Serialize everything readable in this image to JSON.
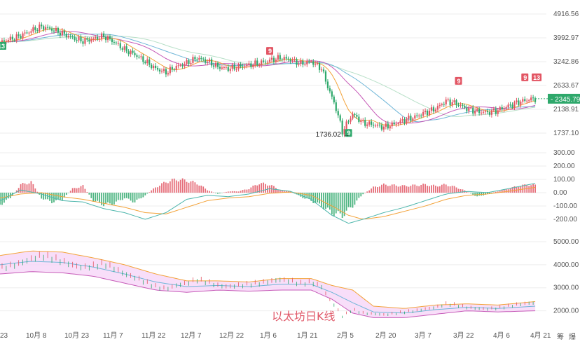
{
  "chart_data": {
    "type": "candlestick",
    "title": "",
    "watermark": "以太坊日K线",
    "x_axis": {
      "tick_labels": [
        "23",
        "10月 8",
        "10月 23",
        "11月 7",
        "11月 22",
        "12月 7",
        "12月 22",
        "1月 6",
        "1月 21",
        "2月 5",
        "2月 20",
        "3月 7",
        "3月 22",
        "4月 6",
        "4月 21"
      ]
    },
    "price_panel": {
      "y_tick_labels": [
        "4916.56",
        "3992.97",
        "3242.86",
        "2633.67",
        "2138.91",
        "1737.10"
      ],
      "y_tick_values": [
        4916.56,
        3992.97,
        3242.86,
        2633.67,
        2138.91,
        1737.1
      ],
      "log_scale": true,
      "current_price": "2345.79",
      "low_annotation": "1736.02",
      "low_value": 1736.02,
      "close_series": [
        {
          "x": 0,
          "y": 3850
        },
        {
          "x": 8,
          "y": 4010
        },
        {
          "x": 15,
          "y": 4250
        },
        {
          "x": 20,
          "y": 4400
        },
        {
          "x": 25,
          "y": 4300
        },
        {
          "x": 30,
          "y": 4150
        },
        {
          "x": 35,
          "y": 3990
        },
        {
          "x": 40,
          "y": 3880
        },
        {
          "x": 45,
          "y": 3950
        },
        {
          "x": 50,
          "y": 4050
        },
        {
          "x": 55,
          "y": 3850
        },
        {
          "x": 60,
          "y": 3600
        },
        {
          "x": 65,
          "y": 3450
        },
        {
          "x": 70,
          "y": 3250
        },
        {
          "x": 75,
          "y": 3050
        },
        {
          "x": 80,
          "y": 2950
        },
        {
          "x": 85,
          "y": 3100
        },
        {
          "x": 90,
          "y": 3200
        },
        {
          "x": 95,
          "y": 3350
        },
        {
          "x": 100,
          "y": 3250
        },
        {
          "x": 105,
          "y": 3100
        },
        {
          "x": 110,
          "y": 3050
        },
        {
          "x": 115,
          "y": 3100
        },
        {
          "x": 120,
          "y": 3150
        },
        {
          "x": 125,
          "y": 3200
        },
        {
          "x": 130,
          "y": 3280
        },
        {
          "x": 135,
          "y": 3350
        },
        {
          "x": 140,
          "y": 3300
        },
        {
          "x": 145,
          "y": 3180
        },
        {
          "x": 150,
          "y": 3250
        },
        {
          "x": 155,
          "y": 3050
        },
        {
          "x": 158,
          "y": 2600
        },
        {
          "x": 162,
          "y": 2150
        },
        {
          "x": 165,
          "y": 1760
        },
        {
          "x": 170,
          "y": 2050
        },
        {
          "x": 175,
          "y": 1900
        },
        {
          "x": 180,
          "y": 1870
        },
        {
          "x": 185,
          "y": 1830
        },
        {
          "x": 190,
          "y": 1880
        },
        {
          "x": 195,
          "y": 1950
        },
        {
          "x": 200,
          "y": 2000
        },
        {
          "x": 205,
          "y": 2080
        },
        {
          "x": 210,
          "y": 2150
        },
        {
          "x": 215,
          "y": 2300
        },
        {
          "x": 220,
          "y": 2250
        },
        {
          "x": 225,
          "y": 2150
        },
        {
          "x": 230,
          "y": 2100
        },
        {
          "x": 235,
          "y": 2080
        },
        {
          "x": 240,
          "y": 2120
        },
        {
          "x": 245,
          "y": 2200
        },
        {
          "x": 250,
          "y": 2280
        },
        {
          "x": 255,
          "y": 2330
        },
        {
          "x": 258,
          "y": 2346
        }
      ],
      "badges": [
        {
          "text": "13",
          "type": "green",
          "x": 0,
          "y": 3850
        },
        {
          "text": "9",
          "type": "red",
          "x": 130,
          "y": 3300
        },
        {
          "text": "9",
          "type": "green",
          "x": 168,
          "y": 1800
        },
        {
          "text": "9",
          "type": "red",
          "x": 221,
          "y": 2540
        },
        {
          "text": "9",
          "type": "red",
          "x": 253,
          "y": 2620
        },
        {
          "text": "13",
          "type": "red",
          "x": 258,
          "y": 2620
        }
      ]
    },
    "macd_panel": {
      "y_tick_labels": [
        "300.00",
        "200.00",
        "100.00",
        "0.00",
        "-100.00",
        "-200.00"
      ],
      "y_tick_values": [
        300,
        200,
        100,
        0,
        -100,
        -200
      ],
      "histogram": [
        {
          "x": 0,
          "v": -90
        },
        {
          "x": 5,
          "v": -40
        },
        {
          "x": 10,
          "v": 60
        },
        {
          "x": 15,
          "v": 80
        },
        {
          "x": 20,
          "v": -40
        },
        {
          "x": 25,
          "v": -70
        },
        {
          "x": 30,
          "v": -50
        },
        {
          "x": 35,
          "v": 30
        },
        {
          "x": 40,
          "v": 50
        },
        {
          "x": 45,
          "v": -60
        },
        {
          "x": 50,
          "v": -90
        },
        {
          "x": 55,
          "v": -80
        },
        {
          "x": 60,
          "v": -40
        },
        {
          "x": 65,
          "v": -70
        },
        {
          "x": 70,
          "v": -20
        },
        {
          "x": 75,
          "v": 40
        },
        {
          "x": 80,
          "v": 80
        },
        {
          "x": 85,
          "v": 100
        },
        {
          "x": 90,
          "v": 90
        },
        {
          "x": 95,
          "v": 70
        },
        {
          "x": 100,
          "v": 20
        },
        {
          "x": 105,
          "v": -10
        },
        {
          "x": 110,
          "v": 10
        },
        {
          "x": 115,
          "v": 10
        },
        {
          "x": 120,
          "v": 30
        },
        {
          "x": 125,
          "v": 70
        },
        {
          "x": 130,
          "v": 60
        },
        {
          "x": 135,
          "v": 20
        },
        {
          "x": 140,
          "v": 10
        },
        {
          "x": 145,
          "v": -30
        },
        {
          "x": 150,
          "v": -60
        },
        {
          "x": 155,
          "v": -100
        },
        {
          "x": 160,
          "v": -150
        },
        {
          "x": 165,
          "v": -170
        },
        {
          "x": 170,
          "v": -100
        },
        {
          "x": 175,
          "v": -10
        },
        {
          "x": 180,
          "v": 40
        },
        {
          "x": 185,
          "v": 60
        },
        {
          "x": 190,
          "v": 55
        },
        {
          "x": 195,
          "v": 50
        },
        {
          "x": 200,
          "v": 55
        },
        {
          "x": 205,
          "v": 60
        },
        {
          "x": 210,
          "v": 50
        },
        {
          "x": 215,
          "v": 60
        },
        {
          "x": 220,
          "v": 40
        },
        {
          "x": 225,
          "v": 10
        },
        {
          "x": 230,
          "v": -30
        },
        {
          "x": 235,
          "v": -10
        },
        {
          "x": 240,
          "v": 10
        },
        {
          "x": 245,
          "v": 30
        },
        {
          "x": 250,
          "v": 50
        },
        {
          "x": 255,
          "v": 60
        },
        {
          "x": 258,
          "v": 55
        }
      ],
      "dif": [
        {
          "x": 0,
          "v": -60
        },
        {
          "x": 10,
          "v": 20
        },
        {
          "x": 20,
          "v": -10
        },
        {
          "x": 30,
          "v": -60
        },
        {
          "x": 40,
          "v": -70
        },
        {
          "x": 50,
          "v": -120
        },
        {
          "x": 60,
          "v": -150
        },
        {
          "x": 70,
          "v": -200
        },
        {
          "x": 80,
          "v": -150
        },
        {
          "x": 90,
          "v": -50
        },
        {
          "x": 100,
          "v": -20
        },
        {
          "x": 110,
          "v": -30
        },
        {
          "x": 120,
          "v": -10
        },
        {
          "x": 130,
          "v": 30
        },
        {
          "x": 140,
          "v": 10
        },
        {
          "x": 150,
          "v": -50
        },
        {
          "x": 160,
          "v": -170
        },
        {
          "x": 168,
          "v": -230
        },
        {
          "x": 175,
          "v": -200
        },
        {
          "x": 185,
          "v": -150
        },
        {
          "x": 195,
          "v": -110
        },
        {
          "x": 205,
          "v": -60
        },
        {
          "x": 215,
          "v": -10
        },
        {
          "x": 225,
          "v": 10
        },
        {
          "x": 235,
          "v": 0
        },
        {
          "x": 245,
          "v": 30
        },
        {
          "x": 258,
          "v": 70
        }
      ],
      "dea": [
        {
          "x": 0,
          "v": -40
        },
        {
          "x": 10,
          "v": -10
        },
        {
          "x": 20,
          "v": 0
        },
        {
          "x": 30,
          "v": -30
        },
        {
          "x": 40,
          "v": -50
        },
        {
          "x": 50,
          "v": -80
        },
        {
          "x": 60,
          "v": -110
        },
        {
          "x": 70,
          "v": -150
        },
        {
          "x": 80,
          "v": -160
        },
        {
          "x": 90,
          "v": -110
        },
        {
          "x": 100,
          "v": -60
        },
        {
          "x": 110,
          "v": -40
        },
        {
          "x": 120,
          "v": -30
        },
        {
          "x": 130,
          "v": -5
        },
        {
          "x": 140,
          "v": 5
        },
        {
          "x": 150,
          "v": -20
        },
        {
          "x": 160,
          "v": -100
        },
        {
          "x": 168,
          "v": -170
        },
        {
          "x": 175,
          "v": -200
        },
        {
          "x": 185,
          "v": -180
        },
        {
          "x": 195,
          "v": -140
        },
        {
          "x": 205,
          "v": -100
        },
        {
          "x": 215,
          "v": -50
        },
        {
          "x": 225,
          "v": -20
        },
        {
          "x": 235,
          "v": -10
        },
        {
          "x": 245,
          "v": 10
        },
        {
          "x": 258,
          "v": 40
        }
      ]
    },
    "boll_panel": {
      "y_tick_labels": [
        "5000.00",
        "4000.00",
        "3000.00",
        "2000.00"
      ],
      "y_tick_values": [
        5000,
        4000,
        3000,
        2000
      ],
      "upper": [
        {
          "x": 0,
          "v": 4400
        },
        {
          "x": 15,
          "v": 4600
        },
        {
          "x": 30,
          "v": 4550
        },
        {
          "x": 45,
          "v": 4300
        },
        {
          "x": 60,
          "v": 4000
        },
        {
          "x": 75,
          "v": 3600
        },
        {
          "x": 90,
          "v": 3300
        },
        {
          "x": 105,
          "v": 3300
        },
        {
          "x": 120,
          "v": 3250
        },
        {
          "x": 135,
          "v": 3400
        },
        {
          "x": 150,
          "v": 3400
        },
        {
          "x": 160,
          "v": 3100
        },
        {
          "x": 170,
          "v": 2900
        },
        {
          "x": 180,
          "v": 2200
        },
        {
          "x": 195,
          "v": 2100
        },
        {
          "x": 210,
          "v": 2250
        },
        {
          "x": 225,
          "v": 2300
        },
        {
          "x": 240,
          "v": 2250
        },
        {
          "x": 258,
          "v": 2400
        }
      ],
      "middle": [
        {
          "x": 0,
          "v": 4000
        },
        {
          "x": 15,
          "v": 4150
        },
        {
          "x": 30,
          "v": 4100
        },
        {
          "x": 45,
          "v": 3900
        },
        {
          "x": 60,
          "v": 3600
        },
        {
          "x": 75,
          "v": 3250
        },
        {
          "x": 90,
          "v": 3050
        },
        {
          "x": 105,
          "v": 3100
        },
        {
          "x": 120,
          "v": 3050
        },
        {
          "x": 135,
          "v": 3150
        },
        {
          "x": 150,
          "v": 3150
        },
        {
          "x": 160,
          "v": 2800
        },
        {
          "x": 170,
          "v": 2350
        },
        {
          "x": 180,
          "v": 1950
        },
        {
          "x": 195,
          "v": 1900
        },
        {
          "x": 210,
          "v": 2050
        },
        {
          "x": 225,
          "v": 2150
        },
        {
          "x": 240,
          "v": 2100
        },
        {
          "x": 258,
          "v": 2200
        }
      ],
      "lower": [
        {
          "x": 0,
          "v": 3600
        },
        {
          "x": 15,
          "v": 3700
        },
        {
          "x": 30,
          "v": 3650
        },
        {
          "x": 45,
          "v": 3500
        },
        {
          "x": 60,
          "v": 3200
        },
        {
          "x": 75,
          "v": 2900
        },
        {
          "x": 90,
          "v": 2800
        },
        {
          "x": 105,
          "v": 2900
        },
        {
          "x": 120,
          "v": 2850
        },
        {
          "x": 135,
          "v": 2900
        },
        {
          "x": 150,
          "v": 2900
        },
        {
          "x": 160,
          "v": 2500
        },
        {
          "x": 170,
          "v": 1900
        },
        {
          "x": 180,
          "v": 1700
        },
        {
          "x": 195,
          "v": 1700
        },
        {
          "x": 210,
          "v": 1850
        },
        {
          "x": 225,
          "v": 2000
        },
        {
          "x": 240,
          "v": 1950
        },
        {
          "x": 258,
          "v": 2000
        }
      ]
    }
  },
  "footer_icons": [
    "筹",
    "爆"
  ],
  "colors": {
    "up": "#e25563",
    "down": "#2ea86b",
    "ma1": "#f3a33a",
    "ma2": "#c65bb8",
    "ma3": "#6fb6d8",
    "ma4": "#b8e0c8",
    "boll_band": "#f6d6f7",
    "boll_upper": "#f3a33a",
    "dea": "#f3a33a",
    "dif": "#4db6ac",
    "price_tag": "#2ea86b",
    "grid": "#eeeeee"
  }
}
